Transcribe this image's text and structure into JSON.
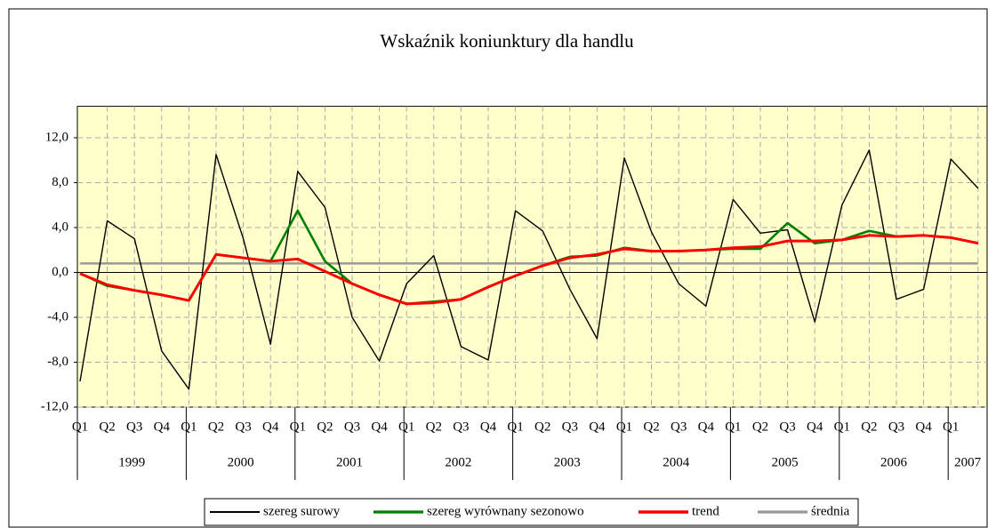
{
  "chart_data": {
    "type": "line",
    "title": "Wskaźnik koniunktury dla handlu",
    "categories": [
      "Q1",
      "Q2",
      "Q3",
      "Q4",
      "Q1",
      "Q2",
      "Q3",
      "Q4",
      "Q1",
      "Q2",
      "Q3",
      "Q4",
      "Q1",
      "Q2",
      "Q3",
      "Q4",
      "Q1",
      "Q2",
      "Q3",
      "Q4",
      "Q1",
      "Q2",
      "Q3",
      "Q4",
      "Q1",
      "Q2",
      "Q3",
      "Q4",
      "Q1",
      "Q2",
      "Q3",
      "Q4",
      "Q1",
      null
    ],
    "years": [
      "1999",
      "2000",
      "2001",
      "2002",
      "2003",
      "2004",
      "2005",
      "2006",
      "2007"
    ],
    "series": [
      {
        "name": "szereg surowy",
        "color": "#000000",
        "values": [
          -9.7,
          4.6,
          3.0,
          -7.0,
          -10.4,
          10.5,
          3.0,
          -6.4,
          9.0,
          5.8,
          -4.0,
          -7.9,
          -1.0,
          1.5,
          -6.6,
          -7.8,
          5.5,
          3.7,
          -1.5,
          -5.9,
          10.2,
          3.6,
          -1.0,
          -3.0,
          6.5,
          3.5,
          3.8,
          -4.4,
          6.0,
          10.9,
          -2.4,
          -1.5,
          10.1,
          7.5
        ]
      },
      {
        "name": "szereg wyrównany sezonowo",
        "color": "#008000",
        "values": [
          -0.1,
          -1.2,
          -1.6,
          -2.0,
          -2.5,
          1.6,
          1.3,
          1.0,
          5.5,
          1.0,
          -1.0,
          -2.0,
          -2.8,
          -2.6,
          -2.4,
          -1.3,
          -0.3,
          0.6,
          1.4,
          1.5,
          2.2,
          1.9,
          1.9,
          2.0,
          2.1,
          2.1,
          4.4,
          2.6,
          2.9,
          3.7,
          3.2,
          3.3,
          3.1,
          2.6
        ]
      },
      {
        "name": "trend",
        "color": "#ff0000",
        "values": [
          -0.1,
          -1.1,
          -1.6,
          -2.0,
          -2.5,
          1.6,
          1.3,
          1.0,
          1.2,
          0.1,
          -1.0,
          -2.0,
          -2.8,
          -2.7,
          -2.4,
          -1.3,
          -0.3,
          0.6,
          1.3,
          1.6,
          2.1,
          1.9,
          1.9,
          2.0,
          2.2,
          2.3,
          2.8,
          2.8,
          2.9,
          3.3,
          3.2,
          3.3,
          3.1,
          2.6
        ]
      },
      {
        "name": "średnia",
        "color": "#999999",
        "values": [
          0.8,
          0.8,
          0.8,
          0.8,
          0.8,
          0.8,
          0.8,
          0.8,
          0.8,
          0.8,
          0.8,
          0.8,
          0.8,
          0.8,
          0.8,
          0.8,
          0.8,
          0.8,
          0.8,
          0.8,
          0.8,
          0.8,
          0.8,
          0.8,
          0.8,
          0.8,
          0.8,
          0.8,
          0.8,
          0.8,
          0.8,
          0.8,
          0.8,
          0.8
        ]
      }
    ],
    "ylim": [
      -12,
      14.8
    ],
    "yticks": [
      {
        "value": -12,
        "label": "-12,0"
      },
      {
        "value": -8,
        "label": "-8,0"
      },
      {
        "value": -4,
        "label": "-4,0"
      },
      {
        "value": 0,
        "label": "0,0"
      },
      {
        "value": 4,
        "label": "4,0"
      },
      {
        "value": 8,
        "label": "8,0"
      },
      {
        "value": 12,
        "label": "12,0"
      }
    ],
    "grid": true,
    "legend": "bottom",
    "background": "#ffffcc"
  }
}
